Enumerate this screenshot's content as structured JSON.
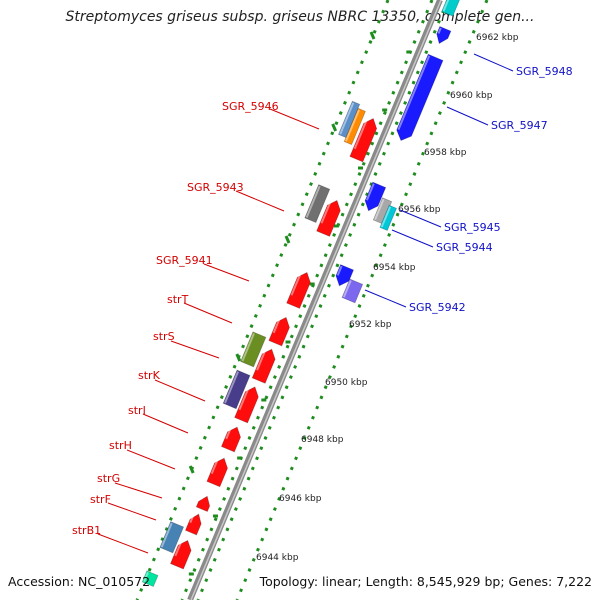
{
  "title": "Streptomyces griseus subsp. griseus NBRC 13350, complete gen...",
  "footer": {
    "accession": "Accession: NC_010572",
    "topology": "Topology: linear; Length: 8,545,929 bp; Genes: 7,222"
  },
  "colors": {
    "forward": "#1a1aff",
    "reverse": "#ff0d0d",
    "backbone": "#888888",
    "ticks": "#1e8c1e"
  },
  "scale_labels": [
    "6962 kbp",
    "6960 kbp",
    "6958 kbp",
    "6956 kbp",
    "6954 kbp",
    "6952 kbp",
    "6950 kbp",
    "6948 kbp",
    "6946 kbp",
    "6944 kbp"
  ],
  "genes_left": [
    "SGR_5946",
    "SGR_5943",
    "SGR_5941",
    "strT",
    "strS",
    "strK",
    "strI",
    "strH",
    "strG",
    "strF",
    "strB1"
  ],
  "genes_right": [
    "SGR_5948",
    "SGR_5947",
    "SGR_5945",
    "SGR_5944",
    "SGR_5942"
  ]
}
